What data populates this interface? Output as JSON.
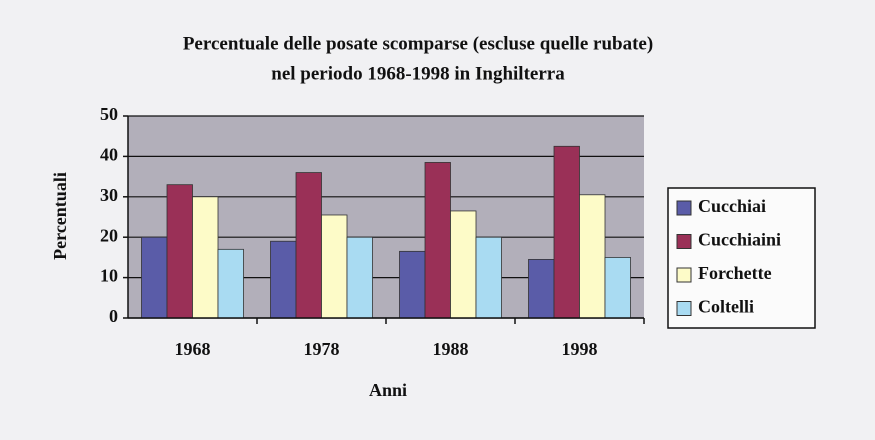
{
  "chart_data": {
    "type": "bar",
    "title": [
      "Percentuale delle posate scomparse (escluse quelle rubate)",
      "nel periodo 1968-1998 in Inghilterra"
    ],
    "x_label": "Anni",
    "y_label": "Percentuali",
    "categories": [
      "1968",
      "1978",
      "1988",
      "1998"
    ],
    "series": [
      {
        "name": "Cucchiai",
        "color": "#5a5ca8",
        "values": [
          20,
          19,
          16.5,
          14.5
        ]
      },
      {
        "name": "Cucchiaini",
        "color": "#9a3057",
        "values": [
          33,
          36,
          38.5,
          42.5
        ]
      },
      {
        "name": "Forchette",
        "color": "#fdfbc8",
        "values": [
          30,
          25.5,
          26.5,
          30.5
        ]
      },
      {
        "name": "Coltelli",
        "color": "#a9dbf2",
        "values": [
          17,
          20,
          20,
          15
        ]
      }
    ],
    "ylim": [
      0,
      50
    ],
    "yticks": [
      0,
      10,
      20,
      30,
      40,
      50
    ],
    "grid": true,
    "legend": "right"
  }
}
